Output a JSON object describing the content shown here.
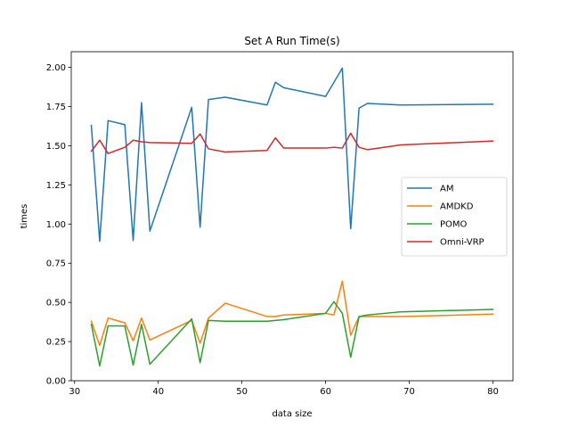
{
  "chart_data": {
    "type": "line",
    "title": "Set A Run Time(s)",
    "xlabel": "data size",
    "ylabel": "times",
    "xlim": [
      29.6,
      82.4
    ],
    "ylim": [
      0.0,
      2.1
    ],
    "xticks": [
      30,
      40,
      50,
      60,
      70,
      80
    ],
    "yticks": [
      0.0,
      0.25,
      0.5,
      0.75,
      1.0,
      1.25,
      1.5,
      1.75,
      2.0
    ],
    "xtick_labels": [
      "30",
      "40",
      "50",
      "60",
      "70",
      "80"
    ],
    "ytick_labels": [
      "0.00",
      "0.25",
      "0.50",
      "0.75",
      "1.00",
      "1.25",
      "1.50",
      "1.75",
      "2.00"
    ],
    "grid": false,
    "legend_position": "center-right",
    "series": [
      {
        "name": "AM",
        "color": "#1f77b4",
        "x": [
          32,
          33,
          34,
          36,
          37,
          38,
          39,
          44,
          45,
          46,
          48,
          53,
          54,
          55,
          60,
          62,
          63,
          64,
          65,
          69,
          80
        ],
        "y": [
          1.63,
          0.89,
          1.66,
          1.635,
          0.895,
          1.775,
          0.955,
          1.745,
          0.98,
          1.795,
          1.81,
          1.76,
          1.905,
          1.87,
          1.815,
          1.995,
          0.97,
          1.74,
          1.77,
          1.76,
          1.765
        ]
      },
      {
        "name": "AMDKD",
        "color": "#ff7f0e",
        "x": [
          32,
          33,
          34,
          36,
          37,
          38,
          39,
          44,
          45,
          46,
          48,
          53,
          54,
          55,
          60,
          61,
          62,
          63,
          64,
          65,
          69,
          80
        ],
        "y": [
          0.38,
          0.225,
          0.4,
          0.37,
          0.255,
          0.4,
          0.26,
          0.385,
          0.24,
          0.4,
          0.495,
          0.41,
          0.41,
          0.42,
          0.43,
          0.42,
          0.635,
          0.29,
          0.41,
          0.41,
          0.41,
          0.425
        ]
      },
      {
        "name": "POMO",
        "color": "#2ca02c",
        "x": [
          32,
          33,
          34,
          36,
          37,
          38,
          39,
          44,
          45,
          46,
          48,
          53,
          54,
          55,
          60,
          61,
          62,
          63,
          64,
          65,
          69,
          80
        ],
        "y": [
          0.36,
          0.095,
          0.35,
          0.35,
          0.1,
          0.36,
          0.105,
          0.395,
          0.115,
          0.385,
          0.38,
          0.38,
          0.385,
          0.39,
          0.43,
          0.505,
          0.43,
          0.15,
          0.41,
          0.42,
          0.44,
          0.455
        ]
      },
      {
        "name": "Omni-VRP",
        "color": "#d62728",
        "x": [
          32,
          33,
          34,
          36,
          37,
          38,
          39,
          44,
          45,
          46,
          48,
          53,
          54,
          55,
          60,
          61,
          62,
          63,
          64,
          65,
          69,
          80
        ],
        "y": [
          1.465,
          1.535,
          1.45,
          1.49,
          1.535,
          1.525,
          1.52,
          1.515,
          1.575,
          1.48,
          1.46,
          1.47,
          1.55,
          1.485,
          1.485,
          1.49,
          1.485,
          1.58,
          1.49,
          1.475,
          1.505,
          1.53
        ]
      }
    ]
  }
}
